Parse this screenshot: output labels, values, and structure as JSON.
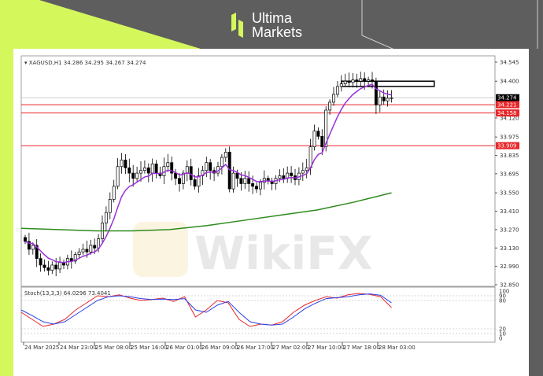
{
  "brand": {
    "line1": "Ultima",
    "line2": "Markets",
    "accent": "#d4f75c"
  },
  "watermark": "WikiFX",
  "chart_data": {
    "type": "candlestick",
    "title": "XAGUSD,H1",
    "ohlc_label": "34.286 34.295 34.267 34.274",
    "ylim": [
      32.85,
      34.545
    ],
    "y_ticks": [
      "34.545",
      "34.400",
      "34.120",
      "33.975",
      "33.835",
      "33.695",
      "33.550",
      "33.410",
      "33.270",
      "33.130",
      "32.990",
      "32.850"
    ],
    "x_ticks": [
      "24 Mar 2025",
      "24 Mar 23:00",
      "25 Mar 08:00",
      "25 Mar 16:00",
      "26 Mar 01:00",
      "26 Mar 09:00",
      "26 Mar 17:00",
      "27 Mar 02:00",
      "27 Mar 10:00",
      "27 Mar 18:00",
      "28 Mar 03:00"
    ],
    "closes": [
      33.18,
      33.12,
      33.15,
      33.05,
      33.0,
      32.98,
      32.96,
      33.0,
      32.97,
      33.02,
      33.0,
      33.05,
      33.03,
      33.08,
      33.1,
      33.12,
      33.1,
      33.15,
      33.13,
      33.2,
      33.32,
      33.4,
      33.5,
      33.6,
      33.75,
      33.8,
      33.74,
      33.7,
      33.66,
      33.7,
      33.72,
      33.74,
      33.7,
      33.77,
      33.7,
      33.68,
      33.75,
      33.78,
      33.7,
      33.66,
      33.62,
      33.7,
      33.75,
      33.65,
      33.6,
      33.68,
      33.72,
      33.78,
      33.72,
      33.7,
      33.75,
      33.82,
      33.86,
      33.58,
      33.7,
      33.66,
      33.62,
      33.66,
      33.62,
      33.6,
      33.58,
      33.63,
      33.66,
      33.64,
      33.62,
      33.66,
      33.68,
      33.66,
      33.7,
      33.68,
      33.65,
      33.7,
      33.72,
      33.74,
      33.9,
      34.02,
      33.98,
      33.9,
      34.18,
      34.24,
      34.3,
      34.36,
      34.38,
      34.4,
      34.39,
      34.41,
      34.4,
      34.42,
      34.4,
      34.41,
      34.4,
      34.22,
      34.28,
      34.25,
      34.27,
      34.274
    ],
    "long_ma": [
      33.28,
      33.27,
      33.26,
      33.26,
      33.27,
      33.3,
      33.34,
      33.38,
      33.42,
      33.48,
      33.55
    ],
    "current_price": {
      "value": 34.274,
      "label": "34.274",
      "color": "#000000"
    },
    "levels": [
      {
        "value": 34.221,
        "label": "34.221",
        "color": "#e8262a"
      },
      {
        "value": 34.158,
        "label": "34.158",
        "color": "#e8262a"
      },
      {
        "value": 33.909,
        "label": "33.909",
        "color": "#e8262a"
      }
    ],
    "zone": {
      "top": 34.4,
      "bottom": 34.36
    },
    "ma_colors": {
      "short": "#9b30d9",
      "long": "#2e8b1e"
    },
    "stochastic": {
      "label": "Stoch(13,3,3) 64.0296 73.4041",
      "levels": [
        "100",
        "90",
        "80",
        "20",
        "10",
        "0"
      ],
      "k": [
        55,
        40,
        25,
        30,
        40,
        60,
        75,
        90,
        88,
        92,
        85,
        80,
        82,
        85,
        78,
        88,
        45,
        60,
        80,
        75,
        40,
        25,
        30,
        28,
        35,
        55,
        70,
        80,
        88,
        85,
        92,
        95,
        93,
        88,
        65
      ],
      "d": [
        60,
        48,
        35,
        30,
        35,
        50,
        65,
        80,
        88,
        90,
        88,
        84,
        82,
        83,
        82,
        84,
        60,
        55,
        70,
        78,
        55,
        35,
        30,
        28,
        30,
        45,
        62,
        74,
        84,
        86,
        88,
        92,
        94,
        91,
        75
      ]
    }
  }
}
